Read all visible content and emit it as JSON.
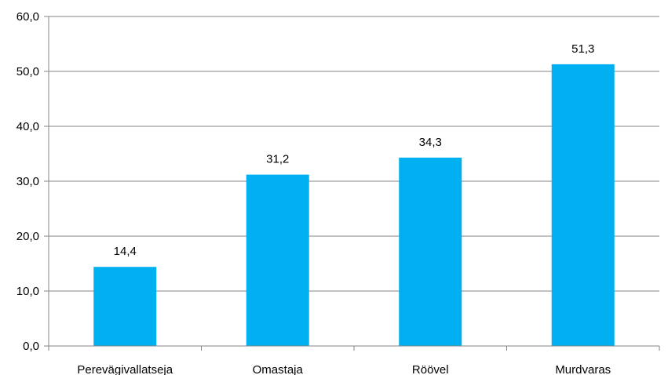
{
  "chart_data": {
    "type": "bar",
    "categories": [
      "Perevägivallatseja",
      "Omastaja",
      "Röövel",
      "Murdvaras"
    ],
    "values": [
      14.4,
      31.2,
      34.3,
      51.3
    ],
    "value_labels": [
      "14,4",
      "31,2",
      "34,3",
      "51,3"
    ],
    "ylim": [
      0,
      60
    ],
    "y_ticks": [
      0,
      10,
      20,
      30,
      40,
      50,
      60
    ],
    "y_tick_labels": [
      "0,0",
      "10,0",
      "20,0",
      "30,0",
      "40,0",
      "50,0",
      "60,0"
    ],
    "grid": true,
    "legend": "none",
    "bar_color": "#00B0F0",
    "grid_color": "#868686"
  }
}
